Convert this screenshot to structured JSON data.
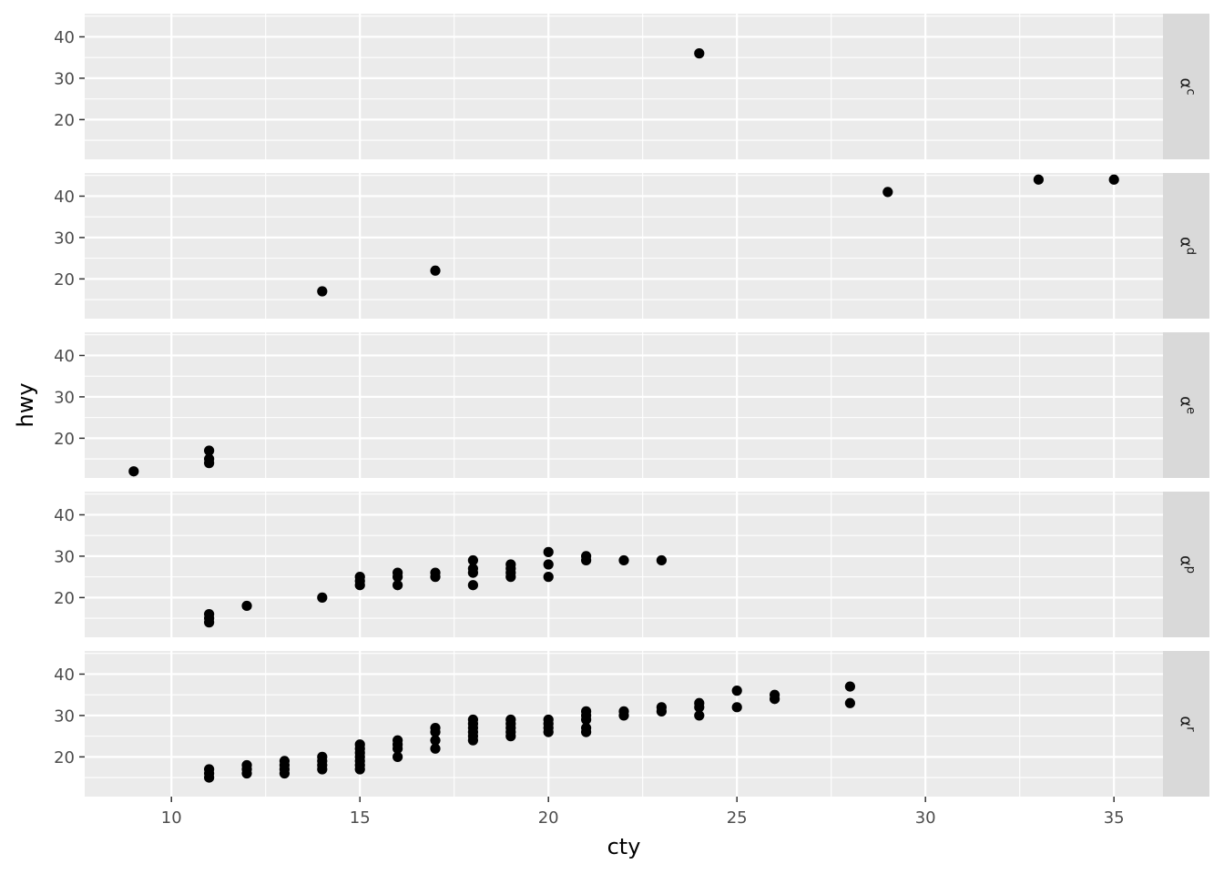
{
  "chart_data": {
    "type": "scatter",
    "title": "",
    "xlabel": "cty",
    "ylabel": "hwy",
    "xlim": [
      7.7,
      36.3
    ],
    "ylim": [
      10.4,
      45.6
    ],
    "x_ticks": [
      10,
      15,
      20,
      25,
      30,
      35
    ],
    "y_ticks": [
      20,
      30,
      40
    ],
    "grid": true,
    "legend": "none",
    "point_color": "#000000",
    "panel_background": "#ebebeb",
    "strip_background": "#d9d9d9",
    "facets": [
      {
        "label_base": "α",
        "label_sub": "c",
        "points": [
          [
            24,
            36
          ]
        ]
      },
      {
        "label_base": "α",
        "label_sub": "d",
        "points": [
          [
            14,
            17
          ],
          [
            17,
            22
          ],
          [
            29,
            41
          ],
          [
            33,
            44
          ],
          [
            35,
            44
          ]
        ]
      },
      {
        "label_base": "α",
        "label_sub": "e",
        "points": [
          [
            9,
            12
          ],
          [
            11,
            14
          ],
          [
            11,
            15
          ],
          [
            11,
            17
          ]
        ]
      },
      {
        "label_base": "α",
        "label_sub": "p",
        "points": [
          [
            11,
            14
          ],
          [
            11,
            15
          ],
          [
            11,
            16
          ],
          [
            12,
            18
          ],
          [
            14,
            20
          ],
          [
            15,
            23
          ],
          [
            15,
            24
          ],
          [
            15,
            25
          ],
          [
            16,
            23
          ],
          [
            16,
            25
          ],
          [
            16,
            26
          ],
          [
            17,
            25
          ],
          [
            17,
            26
          ],
          [
            18,
            23
          ],
          [
            18,
            26
          ],
          [
            18,
            27
          ],
          [
            18,
            29
          ],
          [
            19,
            25
          ],
          [
            19,
            26
          ],
          [
            19,
            27
          ],
          [
            19,
            28
          ],
          [
            20,
            25
          ],
          [
            20,
            28
          ],
          [
            20,
            31
          ],
          [
            21,
            29
          ],
          [
            21,
            30
          ],
          [
            22,
            29
          ],
          [
            23,
            29
          ]
        ]
      },
      {
        "label_base": "α",
        "label_sub": "r",
        "points": [
          [
            11,
            15
          ],
          [
            11,
            16
          ],
          [
            11,
            17
          ],
          [
            12,
            16
          ],
          [
            12,
            17
          ],
          [
            12,
            18
          ],
          [
            13,
            16
          ],
          [
            13,
            17
          ],
          [
            13,
            18
          ],
          [
            13,
            19
          ],
          [
            14,
            17
          ],
          [
            14,
            18
          ],
          [
            14,
            19
          ],
          [
            14,
            20
          ],
          [
            15,
            17
          ],
          [
            15,
            18
          ],
          [
            15,
            19
          ],
          [
            15,
            20
          ],
          [
            15,
            21
          ],
          [
            15,
            22
          ],
          [
            15,
            23
          ],
          [
            16,
            20
          ],
          [
            16,
            22
          ],
          [
            16,
            23
          ],
          [
            16,
            24
          ],
          [
            17,
            22
          ],
          [
            17,
            24
          ],
          [
            17,
            26
          ],
          [
            17,
            27
          ],
          [
            18,
            24
          ],
          [
            18,
            25
          ],
          [
            18,
            26
          ],
          [
            18,
            27
          ],
          [
            18,
            28
          ],
          [
            18,
            29
          ],
          [
            19,
            25
          ],
          [
            19,
            26
          ],
          [
            19,
            27
          ],
          [
            19,
            28
          ],
          [
            19,
            29
          ],
          [
            20,
            26
          ],
          [
            20,
            27
          ],
          [
            20,
            28
          ],
          [
            20,
            29
          ],
          [
            21,
            26
          ],
          [
            21,
            27
          ],
          [
            21,
            29
          ],
          [
            21,
            30
          ],
          [
            21,
            31
          ],
          [
            22,
            30
          ],
          [
            22,
            31
          ],
          [
            23,
            31
          ],
          [
            23,
            32
          ],
          [
            24,
            30
          ],
          [
            24,
            32
          ],
          [
            24,
            33
          ],
          [
            25,
            32
          ],
          [
            25,
            36
          ],
          [
            26,
            34
          ],
          [
            26,
            35
          ],
          [
            28,
            33
          ],
          [
            28,
            37
          ]
        ]
      }
    ]
  }
}
